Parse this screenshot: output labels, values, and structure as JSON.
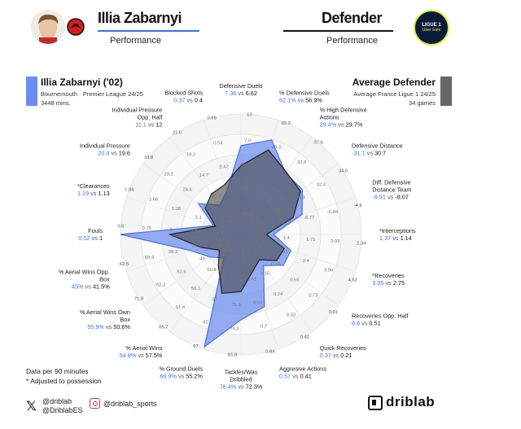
{
  "header": {
    "player_name": "Illia Zabarnyi",
    "player_subtitle": "Performance",
    "role_name": "Defender",
    "role_subtitle": "Performance",
    "league_logo_text": "LIGUE 1",
    "league_logo_subtext": "Uber Eats"
  },
  "player_box": {
    "name": "Illia Zabarnyi ('02)",
    "line1": "Bournemouth · Premier League 24/25",
    "line2": "3448 mins.",
    "color": "#6b8cf0"
  },
  "average_box": {
    "name": "Average Defender",
    "line1": "Average France Ligue 1 24/25",
    "line2": "34 games",
    "color": "#555555"
  },
  "footer": {
    "note1": "Data per 90 minutes",
    "note2": "* Adjusted to possession",
    "twitter1": "@driblab",
    "twitter2": "@DriblabES",
    "instagram": "@driblab_sports",
    "brand": "driblab"
  },
  "chart_data": {
    "type": "radar",
    "series": [
      {
        "name": "Illia Zabarnyi",
        "color": "#6b8cf0"
      },
      {
        "name": "Average Defender",
        "color": "#555555"
      }
    ],
    "metrics": [
      {
        "label": [
          "Defensive Duels"
        ],
        "player": "7.36",
        "avg": "6.62",
        "p": 0.73,
        "a": 0.56,
        "ticks": [
          "10",
          "7.9",
          "5.81",
          "3.71",
          "1.62"
        ]
      },
      {
        "label": [
          "% Defensive Duels"
        ],
        "player": "62.1%",
        "avg": "56.9%",
        "p": 0.82,
        "a": 0.73,
        "ticks": [
          "65.9",
          "49.3",
          "43.1",
          "32.8",
          "26.6"
        ]
      },
      {
        "label": [
          "% High Defensive",
          "Actions"
        ],
        "player": "29.4%",
        "avg": "29.7%",
        "p": 0.62,
        "a": 0.63,
        "ticks": [
          "37.6",
          "32.8",
          "27.9",
          "23.1",
          "18.2"
        ]
      },
      {
        "label": [
          "Defensive Distance"
        ],
        "player": "-31.1",
        "avg": "30.7",
        "p": 0.62,
        "a": 0.6,
        "ticks": [
          "34.6",
          "32.4",
          "30.3",
          "28.1",
          "25.9"
        ]
      },
      {
        "label": [
          "Diff. Defensive",
          "Distance Team"
        ],
        "player": "-9.51",
        "avg": "-8.07",
        "p": 0.52,
        "a": 0.44,
        "ticks": [
          "-4.9",
          "-6.84",
          "-8.77",
          "-10.7",
          "-12.6"
        ]
      },
      {
        "label": [
          "*Interceptions"
        ],
        "player": "1.37",
        "avg": "1.14",
        "p": 0.25,
        "a": 0.19,
        "ticks": [
          "2.34",
          "2.03",
          "1.71",
          "1.4",
          "1.08"
        ]
      },
      {
        "label": [
          "*Recoveries"
        ],
        "player": "3.05",
        "avg": "2.75",
        "p": 0.42,
        "a": 0.36,
        "ticks": [
          "4.52",
          "3.96",
          "3.4",
          "2.83",
          "2.27"
        ]
      },
      {
        "label": [
          "Recoveries Opp. Half"
        ],
        "player": "0.6",
        "avg": "0.51",
        "p": 0.42,
        "a": 0.35,
        "ticks": [
          "0.91",
          "0.73",
          "0.55",
          "0.36",
          "0.18"
        ]
      },
      {
        "label": [
          "Quick Recoveries"
        ],
        "player": "0.37",
        "avg": "0.21",
        "p": 0.3,
        "a": 0.24,
        "ticks": [
          "0.42",
          "0.33",
          "0.24",
          "0.16",
          "0.07"
        ]
      },
      {
        "label": [
          "Aggresive Actions"
        ],
        "player": "0.57",
        "avg": "0.41",
        "p": 0.62,
        "a": 0.3,
        "ticks": [
          "0.84",
          "0.7",
          "0.56",
          "0.41",
          "0.27"
        ]
      },
      {
        "label": [
          "Tackles/Was",
          "Dribbled"
        ],
        "player": "76.4%",
        "avg": "72.3%",
        "p": 0.7,
        "a": 0.46,
        "ticks": [
          "81.8",
          "79.3",
          "76.9",
          "74.4",
          "71.9"
        ]
      },
      {
        "label": [
          "% Ground Duels"
        ],
        "player": "66.9%",
        "avg": "55.2%",
        "p": 0.98,
        "a": 0.5,
        "ticks": [
          "67",
          "62",
          "57",
          "52",
          "47"
        ]
      },
      {
        "label": [
          "% Aerial Wins"
        ],
        "player": "54.8%",
        "avg": "57.5%",
        "p": 0.22,
        "a": 0.3,
        "ticks": [
          "66.7",
          "61.4",
          "56.1",
          "50.8",
          "45.5"
        ]
      },
      {
        "label": [
          "% Aerial Wins Own",
          "Box"
        ],
        "player": "55.9%",
        "avg": "50.6%",
        "p": 0.3,
        "a": 0.2,
        "ticks": [
          "71.9",
          "62.3",
          "52.6",
          "43",
          "33.3"
        ]
      },
      {
        "label": [
          "% Aerial Wins Opp.",
          "Box"
        ],
        "player": "45%",
        "avg": "41.5%",
        "p": 0.42,
        "a": 0.33,
        "ticks": [
          "62.5",
          "50.4",
          "38.3",
          "26.2",
          "14.1"
        ]
      },
      {
        "label": [
          "Fouls"
        ],
        "player": "0.52",
        "avg": "1",
        "p": 1.0,
        "a": 0.58,
        "ticks": [
          "0.5",
          "0.75",
          "1",
          "1.25",
          "1.5"
        ]
      },
      {
        "label": [
          "*Clearances"
        ],
        "player": "1.19",
        "avg": "1.13",
        "p": 0.22,
        "a": 0.2,
        "ticks": [
          "1.94",
          "1.66",
          "1.38",
          "1.1",
          "0.82"
        ]
      },
      {
        "label": [
          "Individual Pressure"
        ],
        "player": "20.4",
        "avg": "19.6",
        "p": 0.42,
        "a": 0.35,
        "ticks": [
          "33.8",
          "29.2",
          "24.6",
          "20",
          "15.4"
        ]
      },
      {
        "label": [
          "Individual Pressure",
          "Opp. Half"
        ],
        "player": "11.1",
        "avg": "12",
        "p": 0.28,
        "a": 0.4,
        "ticks": [
          "21.6",
          "18.2",
          "14.7",
          "11.3",
          "7.82"
        ]
      },
      {
        "label": [
          "Blocked Shots"
        ],
        "player": "0.37",
        "avg": "0.4",
        "p": 0.36,
        "a": 0.42,
        "ticks": [
          "0.65",
          "0.54",
          "0.42",
          "0.31",
          "0.2"
        ]
      }
    ]
  }
}
